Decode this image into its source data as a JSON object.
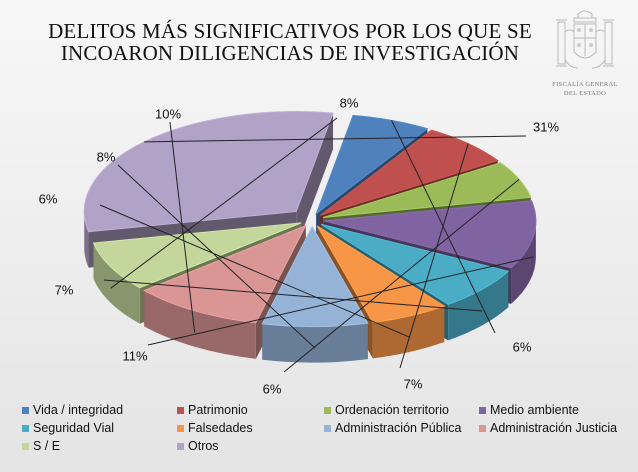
{
  "header": {
    "title_line1": "DELITOS MÁS SIGNIFICATIVOS POR LOS QUE SE",
    "title_line2": "INCOARON DILIGENCIAS DE INVESTIGACIÓN"
  },
  "logo": {
    "line1": "FISCALÍA GENERAL",
    "line2": "DEL ESTADO"
  },
  "chart_data": {
    "type": "pie",
    "style": "3d-exploded",
    "title": "DELITOS MÁS SIGNIFICATIVOS POR LOS QUE SE INCOARON DILIGENCIAS DE INVESTIGACIÓN",
    "unit": "%",
    "legend_position": "bottom",
    "slices": [
      {
        "name": "Vida / integridad",
        "value": 6,
        "label": "6%",
        "color": "#4f81bd"
      },
      {
        "name": "Patrimonio",
        "value": 7,
        "label": "7%",
        "color": "#c0504d"
      },
      {
        "name": "Ordenación territorio",
        "value": 6,
        "label": "6%",
        "color": "#9bbb59"
      },
      {
        "name": "Medio ambiente",
        "value": 11,
        "label": "11%",
        "color": "#8064a2"
      },
      {
        "name": "Seguridad Vial",
        "value": 7,
        "label": "7%",
        "color": "#4bacc6"
      },
      {
        "name": "Falsedades",
        "value": 6,
        "label": "6%",
        "color": "#f79646"
      },
      {
        "name": "Administración Pública",
        "value": 8,
        "label": "8%",
        "color": "#95b3d7"
      },
      {
        "name": "Administración Justicia",
        "value": 10,
        "label": "10%",
        "color": "#d99694"
      },
      {
        "name": "S / E",
        "value": 8,
        "label": "8%",
        "color": "#c3d69b"
      },
      {
        "name": "Otros",
        "value": 31,
        "label": "31%",
        "color": "#b2a2c7"
      }
    ]
  }
}
